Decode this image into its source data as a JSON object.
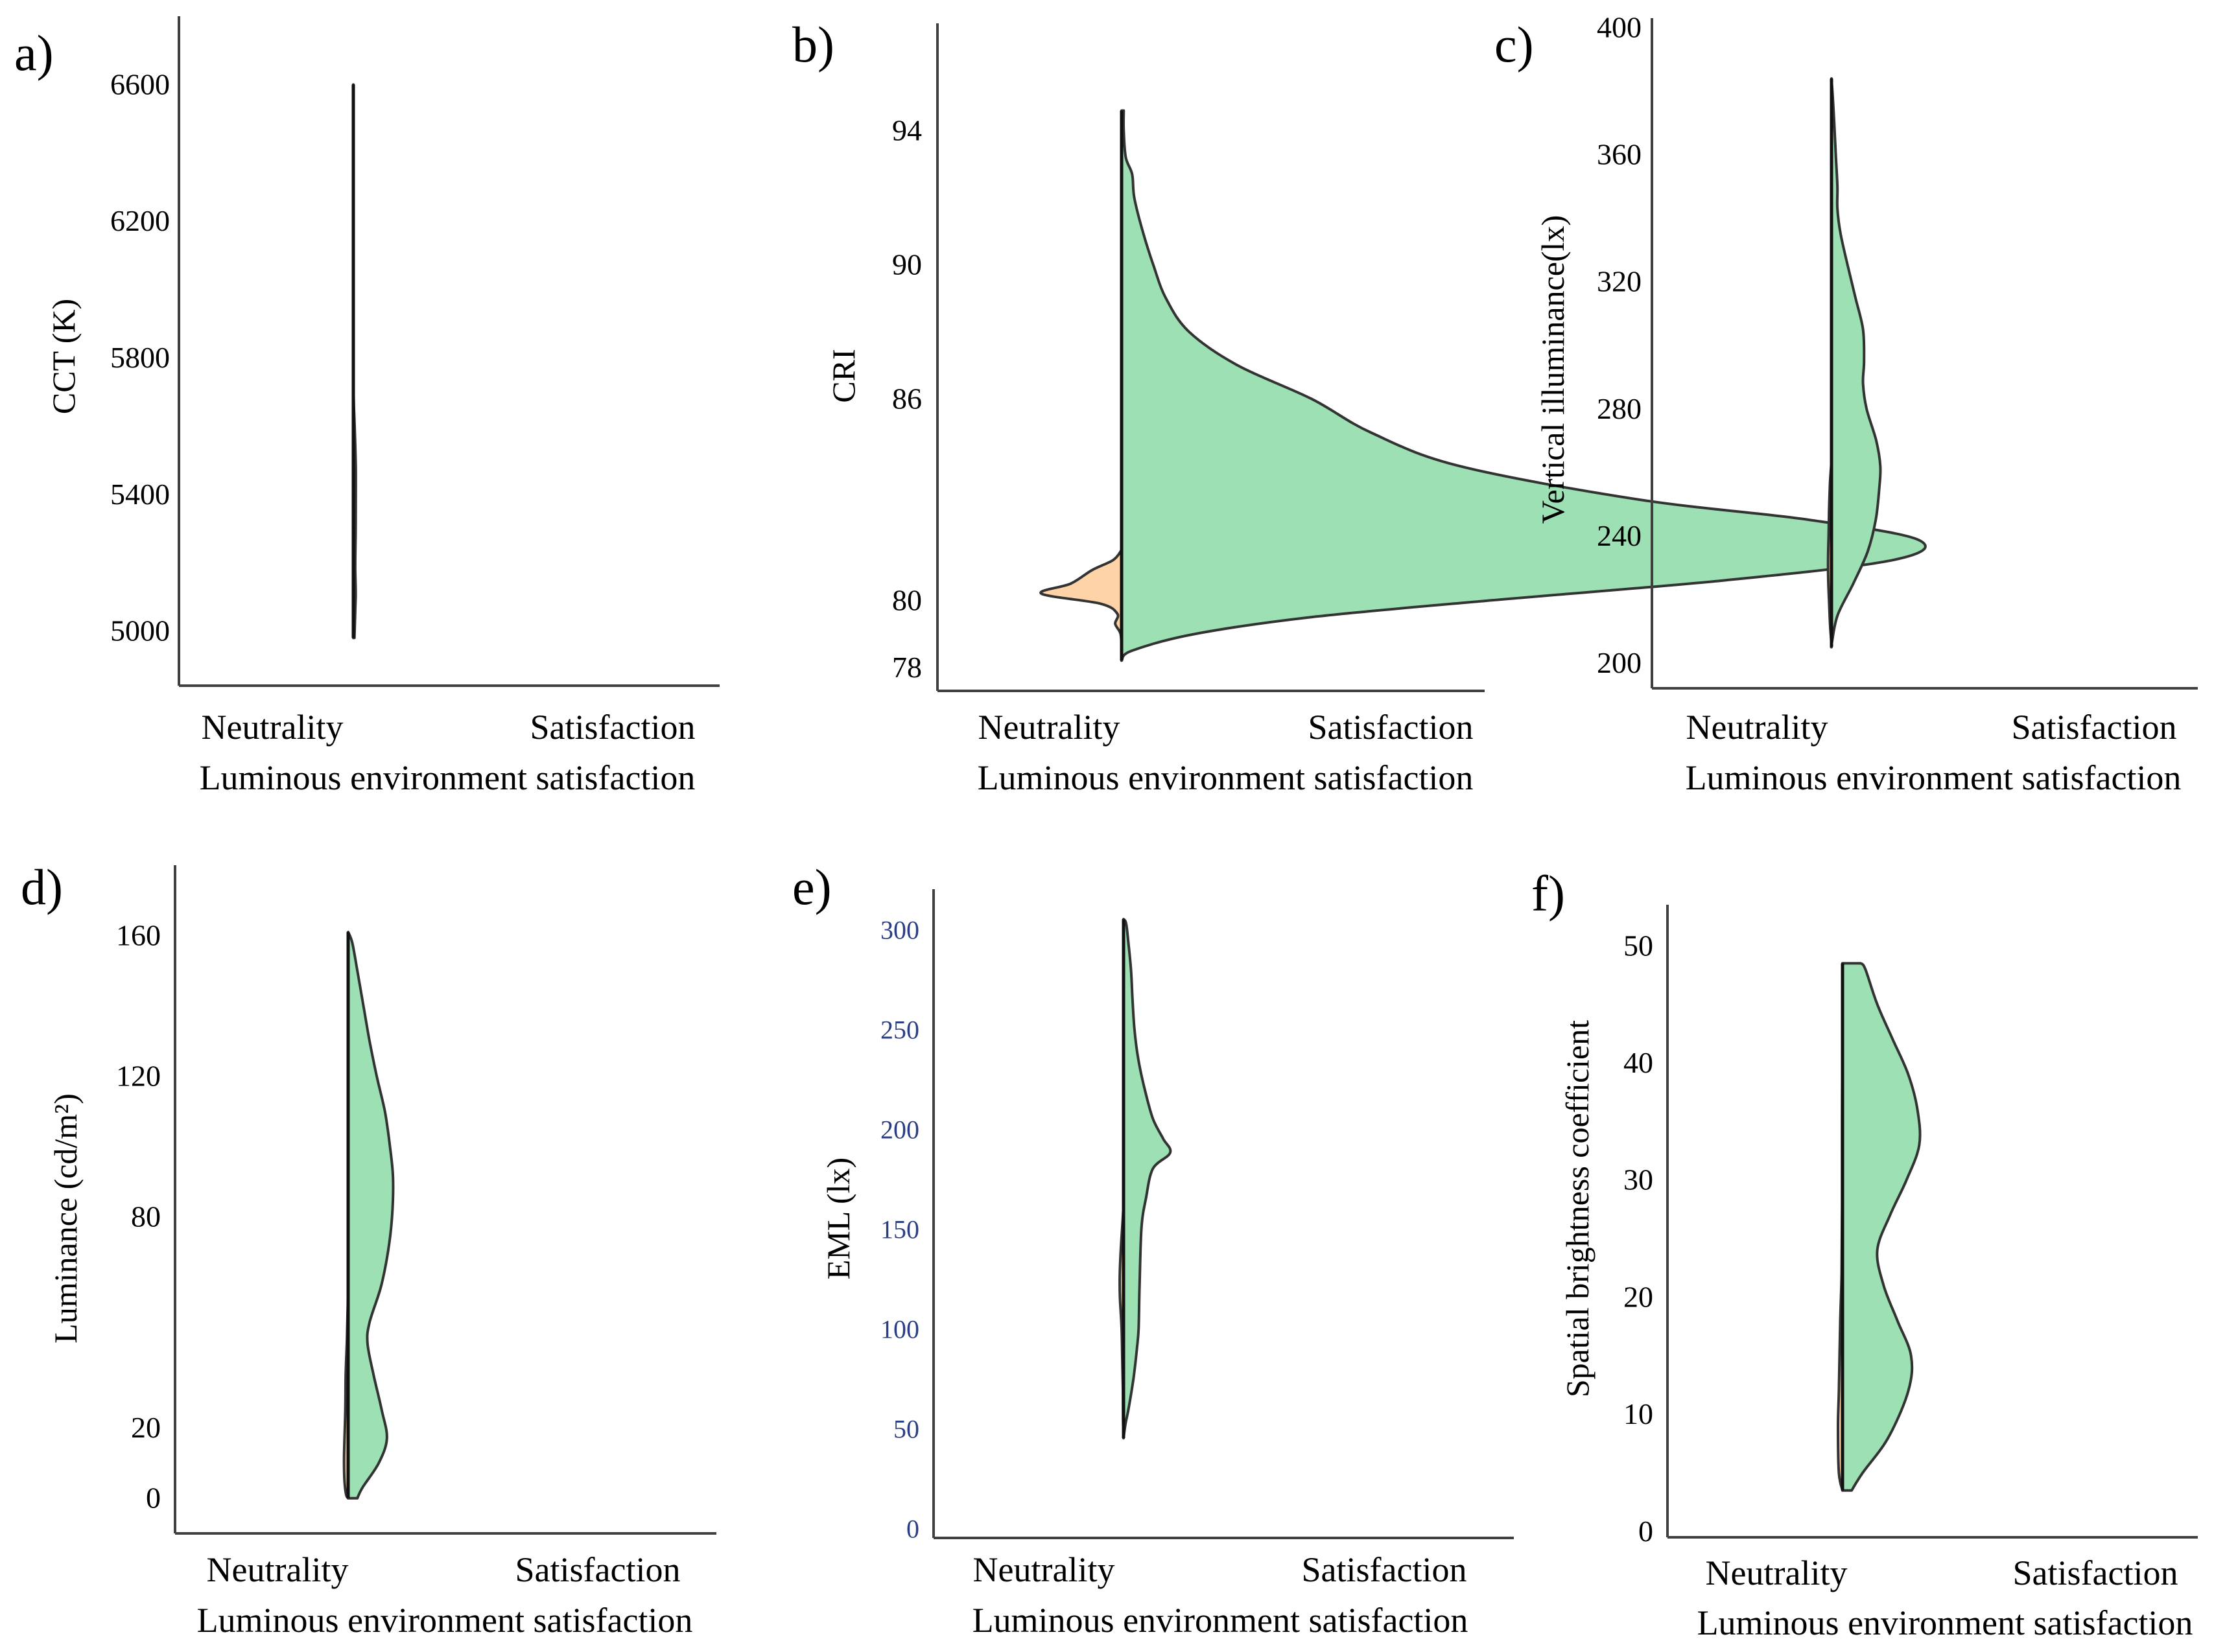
{
  "colors": {
    "neutrality": "#fdd3a7",
    "satisfaction": "#9ce0b3",
    "axis": "#404040",
    "emlTickText": "#2a3e86"
  },
  "chart_data": [
    {
      "type": "violin",
      "panel": "a)",
      "title": "",
      "ylabel": "CCT (K)",
      "xlabel": "Luminous environment satisfaction",
      "categories": [
        "Neutrality",
        "Satisfaction"
      ],
      "yticks": [
        5000,
        5400,
        5800,
        6200,
        6600
      ],
      "ylim": [
        4840,
        6800
      ],
      "series": [
        {
          "name": "Neutrality",
          "color": "#fdd3a7",
          "side": "left",
          "scale": 0.032,
          "profile": [
            [
              4980,
              1
            ],
            [
              5100,
              1
            ],
            [
              5300,
              0.5
            ],
            [
              5500,
              0.5
            ],
            [
              5600,
              4
            ],
            [
              5700,
              9
            ],
            [
              5800,
              14
            ],
            [
              5950,
              25
            ],
            [
              6100,
              20
            ],
            [
              6200,
              15
            ],
            [
              6300,
              8
            ],
            [
              6400,
              4
            ],
            [
              6500,
              1
            ],
            [
              6590,
              0
            ]
          ]
        },
        {
          "name": "Satisfaction",
          "color": "#9ce0b3",
          "side": "right",
          "scale": 0.032,
          "profile": [
            [
              4980,
              98
            ],
            [
              5000,
              118
            ],
            [
              5050,
              165
            ],
            [
              5100,
              211
            ],
            [
              5130,
              205
            ],
            [
              5180,
              174
            ],
            [
              5220,
              179
            ],
            [
              5280,
              208
            ],
            [
              5360,
              220
            ],
            [
              5420,
              225
            ],
            [
              5470,
              226
            ],
            [
              5540,
              178
            ],
            [
              5600,
              120
            ],
            [
              5650,
              60
            ],
            [
              5700,
              25
            ],
            [
              5780,
              5
            ],
            [
              5850,
              2
            ],
            [
              6000,
              1
            ],
            [
              6200,
              1
            ],
            [
              6300,
              4
            ],
            [
              6400,
              10
            ],
            [
              6480,
              5
            ],
            [
              6560,
              1
            ],
            [
              6600,
              0
            ]
          ]
        }
      ]
    },
    {
      "type": "violin",
      "panel": "b)",
      "title": "",
      "ylabel": "CRI",
      "xlabel": "Luminous environment satisfaction",
      "categories": [
        "Neutrality",
        "Satisfaction"
      ],
      "yticks": [
        78,
        80,
        86,
        90,
        94
      ],
      "ylim": [
        77.3,
        97.2
      ],
      "series": [
        {
          "name": "Neutrality",
          "color": "#fdd3a7",
          "side": "left",
          "scale": 0.063,
          "profile": [
            [
              78.5,
              0
            ],
            [
              79.0,
              0.5
            ],
            [
              79.3,
              3
            ],
            [
              79.6,
              2
            ],
            [
              79.9,
              10
            ],
            [
              80.2,
              38
            ],
            [
              80.5,
              24
            ],
            [
              80.9,
              14
            ],
            [
              81.2,
              4
            ],
            [
              81.5,
              0
            ]
          ]
        },
        {
          "name": "Satisfaction",
          "color": "#9ce0b3",
          "side": "right",
          "scale": 0.063,
          "profile": [
            [
              78.2,
              0
            ],
            [
              78.5,
              5
            ],
            [
              79.0,
              35
            ],
            [
              79.5,
              90
            ],
            [
              80.0,
              175
            ],
            [
              80.6,
              286
            ],
            [
              81.2,
              365
            ],
            [
              81.8,
              377
            ],
            [
              82.4,
              325
            ],
            [
              83.0,
              245
            ],
            [
              84.0,
              160
            ],
            [
              85.0,
              118
            ],
            [
              86.0,
              90
            ],
            [
              87.0,
              55
            ],
            [
              88.0,
              32
            ],
            [
              89.0,
              21
            ],
            [
              90.0,
              15
            ],
            [
              91.0,
              10
            ],
            [
              92.0,
              6
            ],
            [
              92.7,
              5
            ],
            [
              93.2,
              2
            ],
            [
              94.0,
              1
            ],
            [
              94.6,
              1
            ]
          ]
        }
      ]
    },
    {
      "type": "violin",
      "panel": "c)",
      "title": "",
      "ylabel": "Vertical illuminance(lx)",
      "xlabel": "Luminous environment satisfaction",
      "categories": [
        "Neutrality",
        "Satisfaction"
      ],
      "yticks": [
        200,
        240,
        280,
        320,
        360,
        400
      ],
      "ylim": [
        192,
        403
      ],
      "series": [
        {
          "name": "Neutrality",
          "color": "#fdd3a7",
          "side": "left",
          "scale": 0.032,
          "profile": [
            [
              205,
              0
            ],
            [
              207,
              3
            ],
            [
              212,
              14
            ],
            [
              220,
              25
            ],
            [
              226,
              32
            ],
            [
              232,
              34
            ],
            [
              240,
              29
            ],
            [
              248,
              24
            ],
            [
              256,
              16
            ],
            [
              262,
              4
            ],
            [
              264,
              0
            ]
          ]
        },
        {
          "name": "Satisfaction",
          "color": "#9ce0b3",
          "side": "right",
          "scale": 0.032,
          "profile": [
            [
              205,
              0
            ],
            [
              206,
              2
            ],
            [
              215,
              60
            ],
            [
              225,
              215
            ],
            [
              235,
              355
            ],
            [
              245,
              435
            ],
            [
              255,
              470
            ],
            [
              262,
              480
            ],
            [
              270,
              440
            ],
            [
              280,
              345
            ],
            [
              288,
              310
            ],
            [
              295,
              320
            ],
            [
              305,
              310
            ],
            [
              315,
              235
            ],
            [
              325,
              160
            ],
            [
              335,
              90
            ],
            [
              343,
              58
            ],
            [
              350,
              58
            ],
            [
              360,
              42
            ],
            [
              370,
              27
            ],
            [
              378,
              13
            ],
            [
              384,
              0
            ]
          ]
        }
      ]
    },
    {
      "type": "violin",
      "panel": "d)",
      "title": "",
      "ylabel": "Luminance (cd/m²)",
      "xlabel": "Luminous environment satisfaction",
      "categories": [
        "Neutrality",
        "Satisfaction"
      ],
      "yticks": [
        0,
        20,
        80,
        120,
        160
      ],
      "ylim": [
        -10,
        180
      ],
      "series": [
        {
          "name": "Neutrality",
          "color": "#fdd3a7",
          "side": "left",
          "scale": 0.058,
          "profile": [
            [
              0,
              0
            ],
            [
              1,
              10
            ],
            [
              5,
              18
            ],
            [
              12,
              20
            ],
            [
              25,
              14
            ],
            [
              35,
              12
            ],
            [
              45,
              6
            ],
            [
              55,
              2
            ],
            [
              65,
              1
            ],
            [
              80,
              0.5
            ],
            [
              100,
              1
            ],
            [
              120,
              1
            ],
            [
              140,
              0.5
            ],
            [
              157,
              0
            ]
          ]
        },
        {
          "name": "Satisfaction",
          "color": "#9ce0b3",
          "side": "right",
          "scale": 0.058,
          "profile": [
            [
              0,
              45
            ],
            [
              3,
              70
            ],
            [
              10,
              150
            ],
            [
              17,
              190
            ],
            [
              25,
              165
            ],
            [
              35,
              125
            ],
            [
              44,
              95
            ],
            [
              50,
              105
            ],
            [
              60,
              160
            ],
            [
              70,
              195
            ],
            [
              80,
              215
            ],
            [
              91,
              220
            ],
            [
              100,
              205
            ],
            [
              110,
              180
            ],
            [
              120,
              140
            ],
            [
              130,
              105
            ],
            [
              140,
              75
            ],
            [
              150,
              45
            ],
            [
              158,
              20
            ],
            [
              161,
              0
            ]
          ]
        }
      ]
    },
    {
      "type": "violin",
      "panel": "e)",
      "title": "",
      "ylabel": "EML (lx)",
      "xlabel": "Luminous environment satisfaction",
      "categories": [
        "Neutrality",
        "Satisfaction"
      ],
      "yticks": [
        0,
        50,
        100,
        150,
        200,
        250,
        300
      ],
      "ylim": [
        -5,
        320
      ],
      "series": [
        {
          "name": "Neutrality",
          "color": "#fdd3a7",
          "side": "left",
          "scale": 0.064,
          "profile": [
            [
              45,
              0
            ],
            [
              55,
              4
            ],
            [
              70,
              5
            ],
            [
              85,
              10
            ],
            [
              100,
              15
            ],
            [
              115,
              28
            ],
            [
              125,
              30
            ],
            [
              135,
              25
            ],
            [
              145,
              16
            ],
            [
              155,
              6
            ],
            [
              162,
              0
            ]
          ]
        },
        {
          "name": "Satisfaction",
          "color": "#9ce0b3",
          "side": "right",
          "scale": 0.064,
          "profile": [
            [
              45,
              0
            ],
            [
              52,
              15
            ],
            [
              60,
              40
            ],
            [
              75,
              78
            ],
            [
              90,
              105
            ],
            [
              100,
              118
            ],
            [
              120,
              125
            ],
            [
              150,
              140
            ],
            [
              165,
              175
            ],
            [
              180,
              230
            ],
            [
              188,
              365
            ],
            [
              195,
              310
            ],
            [
              205,
              230
            ],
            [
              220,
              165
            ],
            [
              235,
              115
            ],
            [
              250,
              85
            ],
            [
              265,
              70
            ],
            [
              280,
              58
            ],
            [
              295,
              35
            ],
            [
              303,
              20
            ],
            [
              305,
              0
            ]
          ]
        }
      ]
    },
    {
      "type": "violin",
      "panel": "f)",
      "title": "",
      "ylabel": "Spatial brightness coefficient",
      "xlabel": "Luminous environment satisfaction",
      "categories": [
        "Neutrality",
        "Satisfaction"
      ],
      "yticks": [
        0,
        10,
        20,
        30,
        40,
        50
      ],
      "ylim": [
        -0.5,
        53.5
      ],
      "series": [
        {
          "name": "Neutrality",
          "color": "#fdd3a7",
          "side": "left",
          "scale": 0.078,
          "profile": [
            [
              3.5,
              0
            ],
            [
              5,
              4
            ],
            [
              9,
              5
            ],
            [
              12,
              4
            ],
            [
              18,
              2.5
            ],
            [
              22,
              1
            ],
            [
              28,
              0.5
            ],
            [
              35,
              0.5
            ],
            [
              40,
              0.3
            ],
            [
              48.5,
              0
            ]
          ]
        },
        {
          "name": "Satisfaction",
          "color": "#9ce0b3",
          "side": "right",
          "scale": 0.078,
          "profile": [
            [
              3.5,
              10
            ],
            [
              5,
              22
            ],
            [
              8,
              50
            ],
            [
              12,
              72
            ],
            [
              15,
              75
            ],
            [
              18,
              60
            ],
            [
              21,
              45
            ],
            [
              24,
              38
            ],
            [
              27,
              52
            ],
            [
              30,
              70
            ],
            [
              33,
              84
            ],
            [
              36,
              82
            ],
            [
              39,
              72
            ],
            [
              42,
              55
            ],
            [
              45,
              38
            ],
            [
              48,
              25
            ],
            [
              48.5,
              20
            ]
          ]
        }
      ]
    }
  ]
}
